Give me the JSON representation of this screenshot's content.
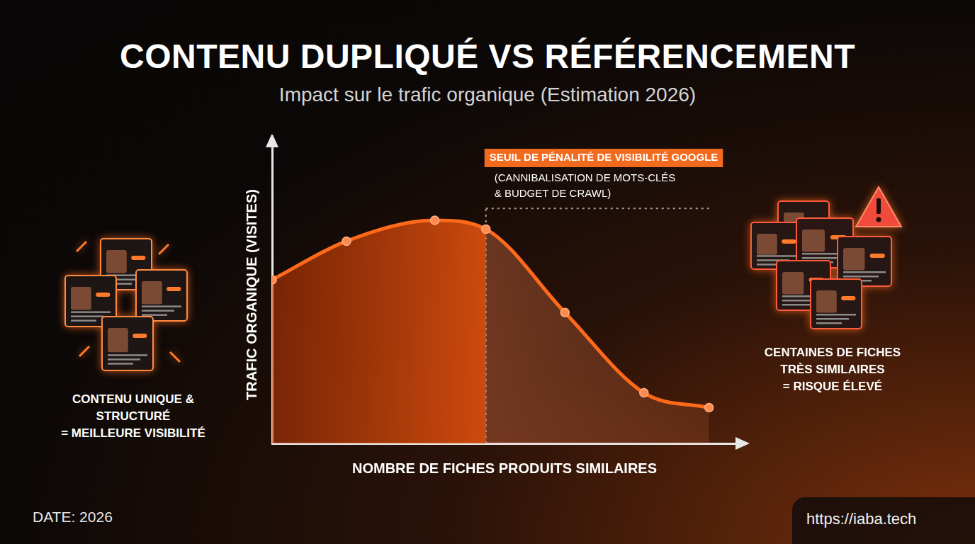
{
  "chart_data": {
    "type": "line",
    "title": "CONTENU DUPLIQUÉ VS RÉFÉRENCEMENT",
    "subtitle": "Impact sur le trafic organique (Estimation 2026)",
    "x_label": "NOMBRE DE FICHES PRODUITS SIMILAIRES",
    "y_label": "TRAFIC ORGANIQUE (VISITES)",
    "x": [
      0,
      16,
      35,
      46,
      63,
      80,
      94
    ],
    "values": [
      55,
      68,
      75,
      72,
      44,
      17,
      12
    ],
    "xlim": [
      0,
      100
    ],
    "ylim": [
      0,
      100
    ],
    "color": "#ff6a1a",
    "marker": "circle",
    "line_style": "solid",
    "grid": false,
    "tick_labels": false,
    "threshold": {
      "x": 46,
      "y": 79,
      "label": "SEUIL DE PÉNALITÉ DE VISIBILITÉ GOOGLE",
      "note": [
        "(CANNIBALISATION DE MOTS-CLÉS",
        "& BUDGET DE CRAWL)"
      ]
    },
    "left_label": [
      "CONTENU UNIQUE &",
      "STRUCTURÉ",
      "= MEILLEURE VISIBILITÉ"
    ],
    "right_label": [
      "CENTAINES DE FICHES",
      "TRÈS SIMILAIRES",
      "= RISQUE ÉLEVÉ"
    ],
    "date": "DATE: 2026",
    "url": "https://iaba.tech"
  }
}
